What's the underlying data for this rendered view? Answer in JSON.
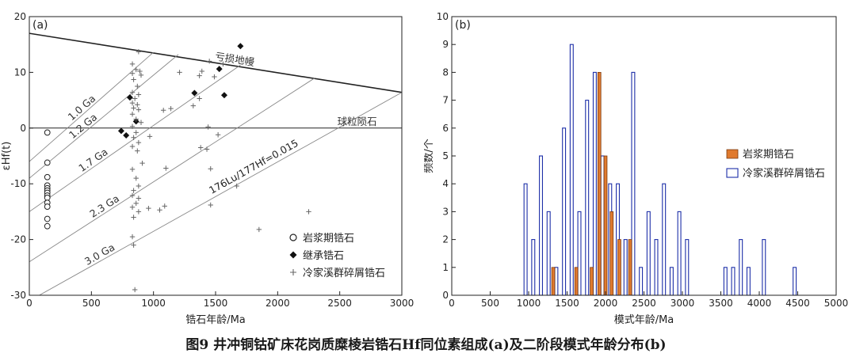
{
  "caption": "图9   井冲铜钴矿床花岗质糜棱岩锆石Hf同位素组成(a)及二阶段模式年龄分布(b)",
  "chart_data": [
    {
      "id": "a",
      "type": "scatter",
      "panel_label": "(a)",
      "xlabel": "锆石年龄/Ma",
      "ylabel": "εHf(t)",
      "xlim": [
        0,
        3000
      ],
      "ylim": [
        -30,
        20
      ],
      "xticks": [
        0,
        500,
        1000,
        1500,
        2000,
        2500,
        3000
      ],
      "yticks": [
        -30,
        -20,
        -10,
        0,
        10,
        20
      ],
      "reference_lines": [
        {
          "name": "depleted-mantle",
          "label": "亏损地幔",
          "points": [
            [
              0,
              17
            ],
            [
              3000,
              6.4
            ]
          ]
        },
        {
          "name": "chur",
          "label": "球粒陨石",
          "points": [
            [
              0,
              0
            ],
            [
              3000,
              0
            ]
          ]
        },
        {
          "name": "crust-1.0",
          "label": "1.0 Ga",
          "points": [
            [
              0,
              -6
            ],
            [
              1000,
              13.6
            ]
          ]
        },
        {
          "name": "crust-1.2",
          "label": "1.2 Ga",
          "points": [
            [
              0,
              -9
            ],
            [
              1200,
              13.2
            ]
          ]
        },
        {
          "name": "crust-1.7",
          "label": "1.7 Ga",
          "points": [
            [
              0,
              -15
            ],
            [
              1700,
              11.3
            ]
          ]
        },
        {
          "name": "crust-2.3",
          "label": "2.3 Ga",
          "points": [
            [
              0,
              -24
            ],
            [
              2300,
              9
            ]
          ]
        },
        {
          "name": "crust-3.0",
          "label": "3.0 Ga",
          "points": [
            [
              0,
              -31
            ],
            [
              3000,
              6.4
            ]
          ]
        }
      ],
      "line_annotation": "176Lu/177Hf=0.015",
      "series": [
        {
          "name": "岩浆期锆石",
          "marker": "circle",
          "points": [
            [
              145,
              -0.8
            ],
            [
              145,
              -6.2
            ],
            [
              145,
              -8.8
            ],
            [
              145,
              -10.3
            ],
            [
              145,
              -10.8
            ],
            [
              145,
              -11.2
            ],
            [
              145,
              -11.6
            ],
            [
              145,
              -12.1
            ],
            [
              145,
              -12.5
            ],
            [
              145,
              -13.4
            ],
            [
              145,
              -14.1
            ],
            [
              145,
              -16.3
            ],
            [
              145,
              -17.6
            ]
          ]
        },
        {
          "name": "继承锆石",
          "marker": "diamond",
          "points": [
            [
              1700,
              14.7
            ],
            [
              1530,
              10.6
            ],
            [
              1330,
              6.3
            ],
            [
              1570,
              5.9
            ],
            [
              810,
              5.5
            ],
            [
              860,
              1.2
            ],
            [
              740,
              -0.5
            ],
            [
              780,
              -1.3
            ]
          ]
        },
        {
          "name": "冷家溪群碎屑锆石",
          "marker": "plus",
          "points": [
            [
              880,
              13.7
            ],
            [
              830,
              11.5
            ],
            [
              860,
              10.5
            ],
            [
              890,
              10.2
            ],
            [
              830,
              9.8
            ],
            [
              900,
              9.5
            ],
            [
              840,
              8.7
            ],
            [
              870,
              7.5
            ],
            [
              830,
              6.4
            ],
            [
              880,
              6.0
            ],
            [
              850,
              5.3
            ],
            [
              830,
              4.5
            ],
            [
              870,
              4.2
            ],
            [
              840,
              3.6
            ],
            [
              880,
              3.3
            ],
            [
              830,
              2.5
            ],
            [
              860,
              1.6
            ],
            [
              900,
              1.0
            ],
            [
              830,
              0.3
            ],
            [
              860,
              -0.8
            ],
            [
              840,
              -1.7
            ],
            [
              880,
              -2.6
            ],
            [
              830,
              -3.3
            ],
            [
              870,
              -4.1
            ],
            [
              910,
              -6.3
            ],
            [
              830,
              -7.4
            ],
            [
              860,
              -9.0
            ],
            [
              880,
              -10.4
            ],
            [
              840,
              -11.2
            ],
            [
              830,
              -12.1
            ],
            [
              880,
              -12.6
            ],
            [
              860,
              -13.5
            ],
            [
              830,
              -14.2
            ],
            [
              880,
              -15.0
            ],
            [
              840,
              -16.0
            ],
            [
              830,
              -19.5
            ],
            [
              840,
              -21.0
            ],
            [
              850,
              -29.0
            ],
            [
              960,
              -14.4
            ],
            [
              1050,
              -14.7
            ],
            [
              1090,
              -14.0
            ],
            [
              1100,
              -7.2
            ],
            [
              970,
              -1.5
            ],
            [
              1080,
              3.2
            ],
            [
              1140,
              3.5
            ],
            [
              1210,
              10.0
            ],
            [
              1370,
              9.4
            ],
            [
              1390,
              10.2
            ],
            [
              1450,
              12.0
            ],
            [
              1560,
              11.5
            ],
            [
              1490,
              9.2
            ],
            [
              1370,
              5.3
            ],
            [
              1320,
              4.0
            ],
            [
              1440,
              0.2
            ],
            [
              1520,
              -1.2
            ],
            [
              1380,
              -3.5
            ],
            [
              1430,
              -3.8
            ],
            [
              1460,
              -7.3
            ],
            [
              1460,
              -13.8
            ],
            [
              1670,
              -10.4
            ],
            [
              1850,
              -18.2
            ],
            [
              2250,
              -15.0
            ]
          ]
        }
      ]
    },
    {
      "id": "b",
      "type": "bar",
      "panel_label": "(b)",
      "xlabel": "模式年龄/Ma",
      "ylabel": "频数/个",
      "xlim": [
        0,
        5000
      ],
      "ylim": [
        0,
        10
      ],
      "xticks": [
        0,
        500,
        1000,
        1500,
        2000,
        2500,
        3000,
        3500,
        4000,
        4500,
        5000
      ],
      "yticks": [
        0,
        1,
        2,
        3,
        4,
        5,
        6,
        7,
        8,
        9,
        10
      ],
      "bin_width": 40,
      "series": [
        {
          "name": "岩浆期锆石",
          "style": "filled",
          "bins": [
            [
              1300,
              1
            ],
            [
              1600,
              1
            ],
            [
              1800,
              1
            ],
            [
              1900,
              8
            ],
            [
              1980,
              5
            ],
            [
              2060,
              3
            ],
            [
              2160,
              2
            ],
            [
              2300,
              2
            ]
          ]
        },
        {
          "name": "冷家溪群碎屑锆石",
          "style": "outline",
          "bins": [
            [
              940,
              4
            ],
            [
              1040,
              2
            ],
            [
              1140,
              5
            ],
            [
              1240,
              3
            ],
            [
              1340,
              1
            ],
            [
              1440,
              6
            ],
            [
              1540,
              9
            ],
            [
              1640,
              3
            ],
            [
              1740,
              7
            ],
            [
              1840,
              8
            ],
            [
              1940,
              5
            ],
            [
              2040,
              4
            ],
            [
              2140,
              4
            ],
            [
              2240,
              2
            ],
            [
              2340,
              8
            ],
            [
              2440,
              1
            ],
            [
              2540,
              3
            ],
            [
              2640,
              2
            ],
            [
              2740,
              4
            ],
            [
              2840,
              1
            ],
            [
              2940,
              3
            ],
            [
              3040,
              2
            ],
            [
              3540,
              1
            ],
            [
              3640,
              1
            ],
            [
              3740,
              2
            ],
            [
              3840,
              1
            ],
            [
              4040,
              2
            ],
            [
              4440,
              1
            ]
          ]
        }
      ]
    }
  ]
}
